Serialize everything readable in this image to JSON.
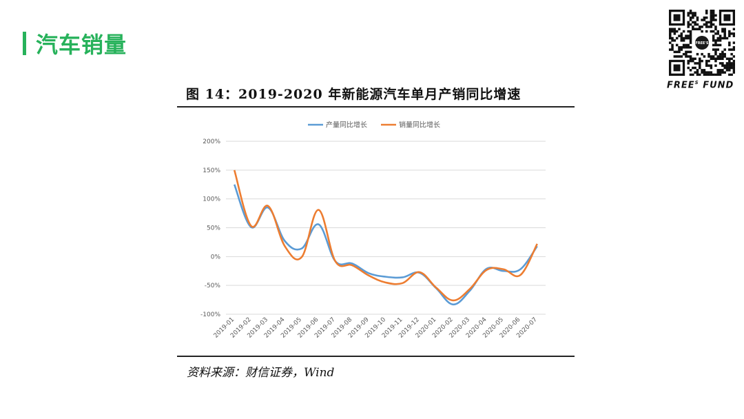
{
  "section": {
    "title": "汽车销量"
  },
  "brand": {
    "name_left": "FREE",
    "name_sup": "S",
    "name_right": " FUND",
    "qr_center": "FREE'S"
  },
  "figure": {
    "caption": "图 14：2019-2020 年新能源汽车单月产销同比增速"
  },
  "source": {
    "text": "资料来源：财信证券，Wind"
  },
  "colors": {
    "accent": "#27b25b",
    "series_production": "#5b9bd5",
    "series_sales": "#ed7d31",
    "grid": "#d9d9d9"
  },
  "chart_data": {
    "type": "line",
    "title": "",
    "xlabel": "",
    "ylabel": "",
    "ylim": [
      -100,
      200
    ],
    "yticks": [
      -100,
      -50,
      0,
      50,
      100,
      150,
      200
    ],
    "ytick_labels": [
      "-100%",
      "-50%",
      "0%",
      "50%",
      "100%",
      "150%",
      "200%"
    ],
    "grid": true,
    "legend_position": "top-center",
    "x": [
      "2019-01",
      "2019-02",
      "2019-03",
      "2019-04",
      "2019-05",
      "2019-06",
      "2019-07",
      "2019-08",
      "2019-09",
      "2019-10",
      "2019-11",
      "2019-12",
      "2020-01",
      "2020-02",
      "2020-03",
      "2020-04",
      "2020-05",
      "2020-06",
      "2020-07"
    ],
    "series": [
      {
        "name": "产量同比增长",
        "values": [
          125,
          51,
          85,
          27,
          14,
          56,
          -8,
          -12,
          -29,
          -35,
          -36,
          -28,
          -55,
          -83,
          -59,
          -21,
          -25,
          -22,
          18
        ]
      },
      {
        "name": "销量同比增长",
        "values": [
          150,
          53,
          88,
          18,
          -1,
          81,
          -8,
          -15,
          -33,
          -45,
          -46,
          -27,
          -54,
          -76,
          -56,
          -23,
          -22,
          -32,
          22
        ]
      }
    ]
  }
}
